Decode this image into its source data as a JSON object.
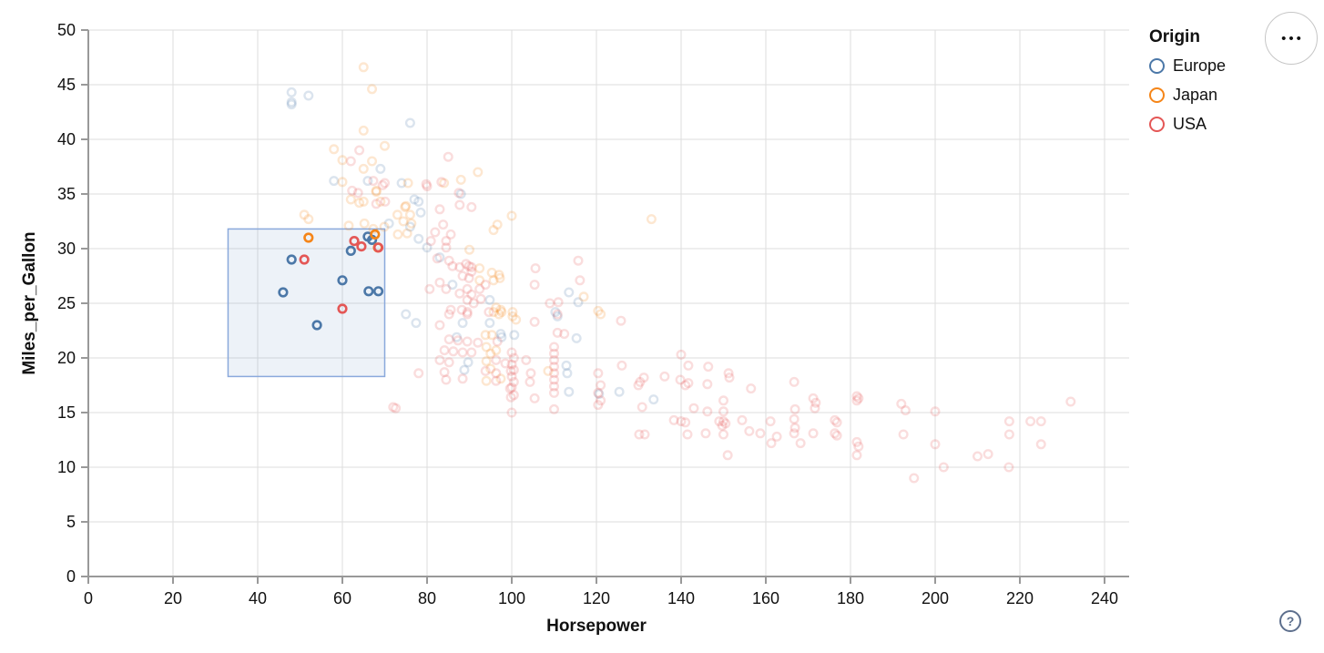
{
  "chart_data": {
    "type": "scatter",
    "title": "",
    "xlabel": "Horsepower",
    "ylabel": "Miles_per_Gallon",
    "xlim": [
      0,
      240
    ],
    "ylim": [
      0,
      50
    ],
    "x_ticks": [
      0,
      20,
      40,
      60,
      80,
      100,
      120,
      140,
      160,
      180,
      200,
      220,
      240
    ],
    "y_ticks": [
      0,
      5,
      10,
      15,
      20,
      25,
      30,
      35,
      40,
      45,
      50
    ],
    "grid": true,
    "legend": {
      "title": "Origin",
      "position": "top-right"
    },
    "brush_selection": {
      "x_range": [
        33,
        70
      ],
      "y_range": [
        18.3,
        31.8
      ]
    },
    "unselected_opacity": 0.2,
    "series": [
      {
        "name": "Europe",
        "color": "#4c78a8",
        "selected": [
          [
            46,
            26
          ],
          [
            48,
            29
          ],
          [
            54,
            23
          ],
          [
            60,
            27.1
          ],
          [
            62,
            29.8
          ],
          [
            66,
            31.1
          ],
          [
            67,
            30.8
          ],
          [
            66.2,
            26.1
          ],
          [
            68.5,
            26.1
          ]
        ],
        "points": [
          [
            48,
            44.3
          ],
          [
            48,
            43.4
          ],
          [
            48,
            43.2
          ],
          [
            52,
            44
          ],
          [
            76,
            41.5
          ],
          [
            69,
            37.3
          ],
          [
            66,
            36.2
          ],
          [
            58,
            36.2
          ],
          [
            74,
            36
          ],
          [
            77,
            34.5
          ],
          [
            78.5,
            33.3
          ],
          [
            76,
            32
          ],
          [
            71,
            32.3
          ],
          [
            88,
            35
          ],
          [
            78,
            34.3
          ],
          [
            78,
            30.9
          ],
          [
            80,
            30.1
          ],
          [
            83,
            29.2
          ],
          [
            86,
            26.7
          ],
          [
            94.8,
            25.3
          ],
          [
            94.8,
            23.2
          ],
          [
            97.4,
            22.2
          ],
          [
            100.6,
            22.1
          ],
          [
            87,
            21.9
          ],
          [
            89.7,
            19.6
          ],
          [
            88.8,
            18.9
          ],
          [
            97.6,
            21.9
          ],
          [
            88.4,
            23.2
          ],
          [
            75,
            24
          ],
          [
            77.4,
            23.2
          ],
          [
            113.5,
            26
          ],
          [
            115.7,
            25.1
          ],
          [
            110.3,
            24.2
          ],
          [
            110.8,
            23.8
          ],
          [
            115.3,
            21.8
          ],
          [
            112.9,
            19.3
          ],
          [
            113.1,
            18.6
          ],
          [
            113.5,
            16.9
          ],
          [
            120.6,
            16.7
          ],
          [
            125.4,
            16.9
          ],
          [
            133.5,
            16.2
          ]
        ]
      },
      {
        "name": "Japan",
        "color": "#f58518",
        "selected": [
          [
            52,
            31
          ],
          [
            67.7,
            31.3
          ],
          [
            68.4,
            30.1
          ]
        ],
        "points": [
          [
            65,
            46.6
          ],
          [
            67,
            44.6
          ],
          [
            65,
            40.8
          ],
          [
            70,
            39.4
          ],
          [
            58,
            39.1
          ],
          [
            60,
            38.1
          ],
          [
            67,
            38
          ],
          [
            65,
            37.3
          ],
          [
            60,
            36.1
          ],
          [
            68,
            35.3
          ],
          [
            75.5,
            36
          ],
          [
            84,
            36
          ],
          [
            88,
            36.3
          ],
          [
            92,
            37
          ],
          [
            51,
            33.1
          ],
          [
            52,
            32.7
          ],
          [
            62,
            34.5
          ],
          [
            64,
            34.2
          ],
          [
            65,
            34.3
          ],
          [
            68,
            35.2
          ],
          [
            69,
            34.3
          ],
          [
            75,
            33.9
          ],
          [
            76,
            33.1
          ],
          [
            73,
            33.1
          ],
          [
            74.4,
            32.5
          ],
          [
            76.3,
            32.3
          ],
          [
            74.8,
            33.8
          ],
          [
            61.5,
            32.1
          ],
          [
            65.2,
            32.3
          ],
          [
            67.3,
            31.8
          ],
          [
            69.9,
            32
          ],
          [
            73.1,
            31.3
          ],
          [
            75.3,
            31.4
          ],
          [
            95.7,
            31.7
          ],
          [
            100,
            33
          ],
          [
            96.6,
            32.2
          ],
          [
            133,
            32.7
          ],
          [
            90,
            29.9
          ],
          [
            92.4,
            28.2
          ],
          [
            95.3,
            27.8
          ],
          [
            97,
            27.6
          ],
          [
            95.7,
            27.1
          ],
          [
            92.4,
            27.1
          ],
          [
            97.2,
            27.3
          ],
          [
            96.3,
            24.6
          ],
          [
            97.4,
            24.4
          ],
          [
            95.7,
            24.2
          ],
          [
            97,
            24
          ],
          [
            100.2,
            24.2
          ],
          [
            97.6,
            24.2
          ],
          [
            100.2,
            23.8
          ],
          [
            101,
            23.5
          ],
          [
            93.8,
            22.1
          ],
          [
            95.3,
            22.1
          ],
          [
            94,
            21
          ],
          [
            95,
            20.4
          ],
          [
            94,
            19.7
          ],
          [
            95,
            19
          ],
          [
            94,
            17.9
          ],
          [
            96.3,
            20.7
          ],
          [
            97.4,
            18.1
          ],
          [
            108.6,
            18.8
          ],
          [
            117,
            25.6
          ],
          [
            120.4,
            24.3
          ],
          [
            121,
            24
          ]
        ]
      },
      {
        "name": "USA",
        "color": "#e45756",
        "selected": [
          [
            51,
            29
          ],
          [
            60,
            24.5
          ],
          [
            62.8,
            30.7
          ],
          [
            64.5,
            30.2
          ],
          [
            68.5,
            30.1
          ]
        ],
        "points": [
          [
            64,
            39
          ],
          [
            62,
            38
          ],
          [
            70,
            36
          ],
          [
            85,
            38.4
          ],
          [
            67.3,
            36.2
          ],
          [
            69.5,
            35.8
          ],
          [
            70.1,
            34.3
          ],
          [
            68,
            34.1
          ],
          [
            79.8,
            35.9
          ],
          [
            83.4,
            36.1
          ],
          [
            62.3,
            35.3
          ],
          [
            63.7,
            35.1
          ],
          [
            80,
            35.7
          ],
          [
            87.5,
            35.1
          ],
          [
            87.7,
            34
          ],
          [
            90.5,
            33.8
          ],
          [
            83,
            33.6
          ],
          [
            83.8,
            32.2
          ],
          [
            81.9,
            31.5
          ],
          [
            85.6,
            31.3
          ],
          [
            80.9,
            30.7
          ],
          [
            84.5,
            30.7
          ],
          [
            84.5,
            30.1
          ],
          [
            82.4,
            29.1
          ],
          [
            85.2,
            28.9
          ],
          [
            86,
            28.4
          ],
          [
            87.7,
            28.3
          ],
          [
            89.2,
            28.6
          ],
          [
            90.5,
            28.3
          ],
          [
            89.9,
            28.4
          ],
          [
            90.5,
            27.9
          ],
          [
            88.4,
            27.5
          ],
          [
            89.9,
            27.3
          ],
          [
            105.6,
            28.2
          ],
          [
            105.4,
            26.7
          ],
          [
            115.7,
            28.9
          ],
          [
            116.1,
            27.1
          ],
          [
            83,
            26.9
          ],
          [
            84.5,
            26.3
          ],
          [
            80.6,
            26.3
          ],
          [
            87.7,
            25.9
          ],
          [
            89.5,
            26.3
          ],
          [
            90.5,
            25.8
          ],
          [
            92.4,
            26.3
          ],
          [
            93.8,
            26.7
          ],
          [
            89.5,
            25.3
          ],
          [
            91,
            25
          ],
          [
            92.7,
            25.4
          ],
          [
            109,
            25
          ],
          [
            111,
            25.1
          ],
          [
            85.6,
            24.4
          ],
          [
            89.5,
            24.2
          ],
          [
            94.6,
            24.2
          ],
          [
            85.2,
            24
          ],
          [
            88.2,
            24.4
          ],
          [
            89.5,
            24
          ],
          [
            105.4,
            23.3
          ],
          [
            110.8,
            24
          ],
          [
            110.8,
            22.3
          ],
          [
            112.4,
            22.2
          ],
          [
            83,
            23
          ],
          [
            78,
            18.6
          ],
          [
            72,
            15.5
          ],
          [
            72.6,
            15.4
          ],
          [
            85.2,
            21.7
          ],
          [
            87.3,
            21.6
          ],
          [
            89.5,
            21.5
          ],
          [
            92,
            21.4
          ],
          [
            96.6,
            21.5
          ],
          [
            84.1,
            20.7
          ],
          [
            86.2,
            20.6
          ],
          [
            88.4,
            20.5
          ],
          [
            90.5,
            20.5
          ],
          [
            83,
            19.8
          ],
          [
            85.2,
            19.6
          ],
          [
            96.3,
            19.8
          ],
          [
            98.5,
            19.5
          ],
          [
            84.1,
            18.7
          ],
          [
            93.8,
            18.8
          ],
          [
            96.3,
            18.6
          ],
          [
            99.8,
            18.8
          ],
          [
            84.5,
            18
          ],
          [
            88.4,
            18.1
          ],
          [
            96.3,
            17.9
          ],
          [
            99.6,
            17.2
          ],
          [
            99.8,
            16.4
          ],
          [
            100,
            20.5
          ],
          [
            100.5,
            20
          ],
          [
            100,
            19.4
          ],
          [
            100.5,
            18.9
          ],
          [
            100,
            18.3
          ],
          [
            100.5,
            17.8
          ],
          [
            100,
            17.3
          ],
          [
            100.5,
            16.6
          ],
          [
            100,
            15
          ],
          [
            103.4,
            19.8
          ],
          [
            104.5,
            18.6
          ],
          [
            104.3,
            17.8
          ],
          [
            105.4,
            16.3
          ],
          [
            110,
            21
          ],
          [
            110,
            20.4
          ],
          [
            110,
            19.8
          ],
          [
            110,
            19.2
          ],
          [
            110,
            18.6
          ],
          [
            110,
            18
          ],
          [
            110,
            17.4
          ],
          [
            110,
            16.8
          ],
          [
            110,
            15.3
          ],
          [
            120.4,
            18.6
          ],
          [
            121,
            17.5
          ],
          [
            120.4,
            16.8
          ],
          [
            121,
            16.1
          ],
          [
            120.4,
            15.7
          ],
          [
            126,
            19.3
          ],
          [
            125.8,
            23.4
          ],
          [
            130.3,
            17.8
          ],
          [
            129.9,
            17.5
          ],
          [
            131.2,
            18.2
          ],
          [
            136.1,
            18.3
          ],
          [
            130.8,
            15.5
          ],
          [
            130.1,
            13
          ],
          [
            131.4,
            13
          ],
          [
            140,
            20.3
          ],
          [
            141.7,
            19.3
          ],
          [
            146.4,
            19.2
          ],
          [
            139.8,
            18
          ],
          [
            141,
            17.5
          ],
          [
            141.7,
            17.7
          ],
          [
            138.3,
            14.3
          ],
          [
            140,
            14.2
          ],
          [
            141,
            14.1
          ],
          [
            141.5,
            13
          ],
          [
            143,
            15.4
          ],
          [
            146.2,
            15.1
          ],
          [
            145.8,
            13.1
          ],
          [
            146.2,
            17.6
          ],
          [
            149,
            14.2
          ],
          [
            149.7,
            13.8
          ],
          [
            151.2,
            18.6
          ],
          [
            151.4,
            18.2
          ],
          [
            150,
            16.1
          ],
          [
            150,
            15.1
          ],
          [
            150,
            14.2
          ],
          [
            150.5,
            14
          ],
          [
            150,
            13
          ],
          [
            151,
            11.1
          ],
          [
            154.4,
            14.3
          ],
          [
            156.1,
            13.3
          ],
          [
            158.7,
            13.1
          ],
          [
            156.5,
            17.2
          ],
          [
            161.1,
            14.2
          ],
          [
            161.3,
            12.2
          ],
          [
            162.6,
            12.8
          ],
          [
            166.7,
            17.8
          ],
          [
            166.9,
            15.3
          ],
          [
            166.7,
            14.4
          ],
          [
            166.9,
            13.6
          ],
          [
            166.7,
            13.1
          ],
          [
            168.2,
            12.2
          ],
          [
            171.2,
            16.3
          ],
          [
            171.8,
            15.9
          ],
          [
            171.6,
            15.4
          ],
          [
            171.2,
            13.1
          ],
          [
            176.3,
            14.3
          ],
          [
            176.8,
            14.1
          ],
          [
            176.3,
            13.1
          ],
          [
            176.8,
            12.9
          ],
          [
            181.5,
            16.5
          ],
          [
            181.9,
            16.3
          ],
          [
            181.5,
            16.1
          ],
          [
            181.5,
            12.3
          ],
          [
            181.9,
            11.9
          ],
          [
            181.5,
            11.1
          ],
          [
            192,
            15.8
          ],
          [
            193,
            15.2
          ],
          [
            200,
            15.1
          ],
          [
            192.5,
            13
          ],
          [
            200,
            12.1
          ],
          [
            202,
            10
          ],
          [
            195,
            9
          ],
          [
            210,
            11
          ],
          [
            212.5,
            11.2
          ],
          [
            217.5,
            14.2
          ],
          [
            217.5,
            13
          ],
          [
            217.4,
            10
          ],
          [
            222.5,
            14.2
          ],
          [
            225,
            14.2
          ],
          [
            225,
            12.1
          ],
          [
            232,
            16
          ]
        ]
      }
    ]
  },
  "brush_style": {
    "fill": "#6f92c9",
    "fill_opacity": 0.12,
    "stroke": "#8aa9dc"
  },
  "axis_style": {
    "domain_color": "#999999",
    "grid_color": "#dddddd",
    "label_color": "#111111"
  },
  "controls": {
    "menu_button_icon": "•••",
    "help_button_label": "?"
  }
}
